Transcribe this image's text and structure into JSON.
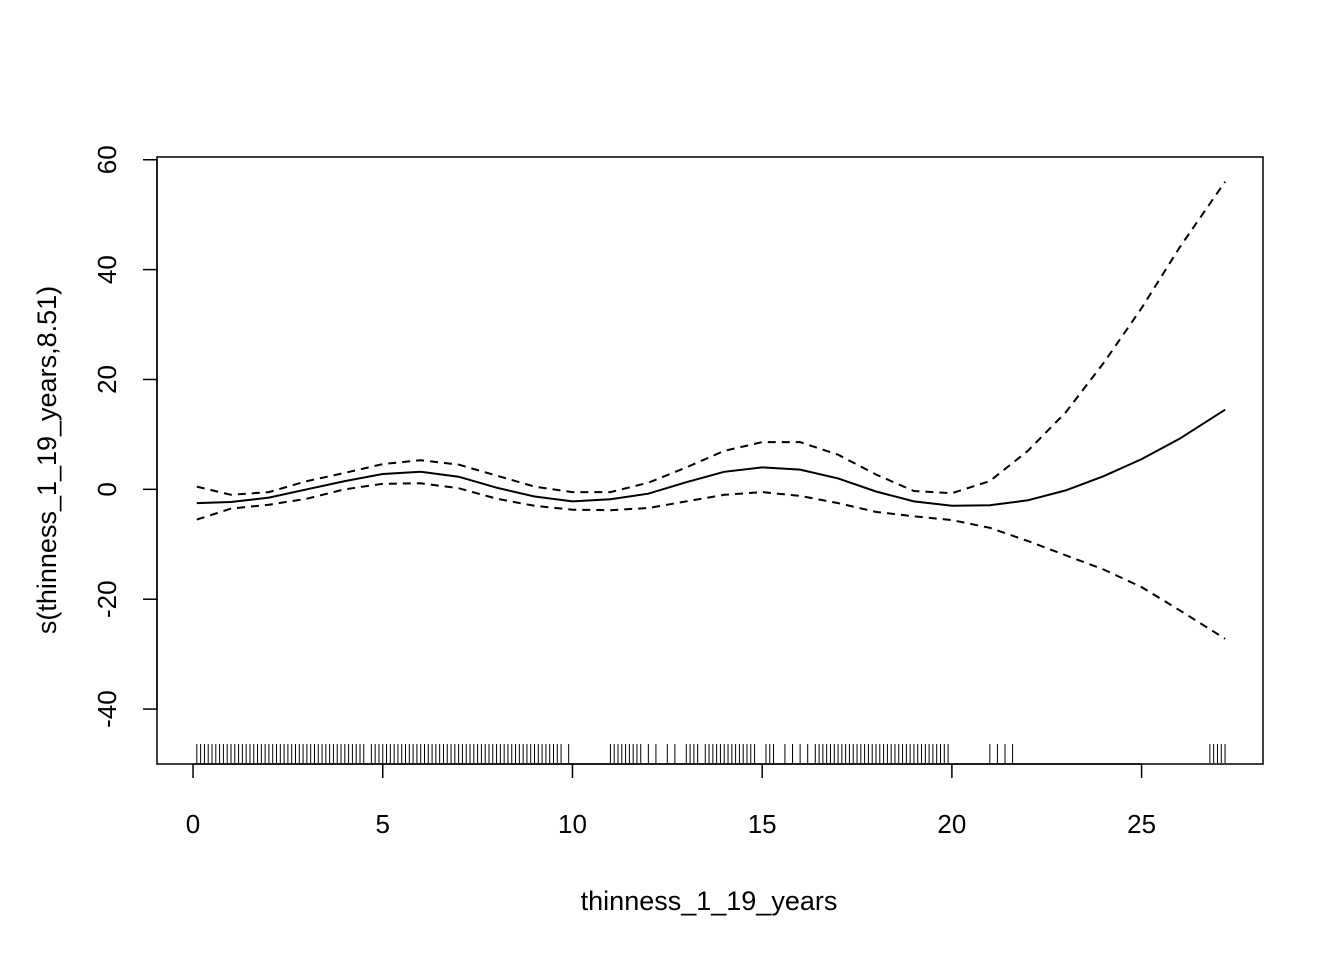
{
  "chart_data": {
    "type": "line",
    "title": "",
    "xlabel": "thinness_1_19_years",
    "ylabel": "s(thinness_1_19_years,8.51)",
    "xlim": [
      -0.95,
      28.2
    ],
    "ylim": [
      -50,
      60.5
    ],
    "x_ticks": [
      0,
      5,
      10,
      15,
      20,
      25
    ],
    "y_ticks": [
      -40,
      -20,
      0,
      20,
      40,
      60
    ],
    "x_tick_labels": [
      "0",
      "5",
      "10",
      "15",
      "20",
      "25"
    ],
    "y_tick_labels": [
      "-40",
      "-20",
      "0",
      "20",
      "40",
      "60"
    ],
    "grid": false,
    "legend": "none",
    "series": [
      {
        "style": "solid",
        "x": [
          0.1,
          1,
          2,
          3,
          4,
          5,
          6,
          7,
          8,
          9,
          10,
          11,
          12,
          13,
          14,
          15,
          16,
          17,
          18,
          19,
          20,
          21,
          22,
          23,
          24,
          25,
          26,
          27.2
        ],
        "y": [
          -2.5,
          -2.3,
          -1.5,
          0,
          1.5,
          2.8,
          3.2,
          2.3,
          0.3,
          -1.3,
          -2.2,
          -1.8,
          -0.8,
          1.3,
          3.2,
          4.0,
          3.6,
          2.0,
          -0.4,
          -2.2,
          -3.0,
          -2.9,
          -2.0,
          -0.2,
          2.4,
          5.5,
          9.2,
          14.5
        ]
      },
      {
        "style": "dashed",
        "x": [
          0.1,
          1,
          2,
          3,
          4,
          5,
          6,
          7,
          8,
          9,
          10,
          11,
          12,
          13,
          14,
          15,
          16,
          17,
          18,
          19,
          20,
          21,
          22,
          23,
          24,
          25,
          26,
          27.2
        ],
        "y": [
          0.5,
          -1,
          -0.5,
          1.5,
          3,
          4.6,
          5.3,
          4.5,
          2.5,
          0.5,
          -0.5,
          -0.5,
          1.2,
          4,
          7,
          8.6,
          8.6,
          6.3,
          2.7,
          -0.3,
          -0.7,
          1.5,
          7,
          14,
          23,
          33,
          44,
          56
        ]
      },
      {
        "style": "dashed",
        "x": [
          0.1,
          1,
          2,
          3,
          4,
          5,
          6,
          7,
          8,
          9,
          10,
          11,
          12,
          13,
          14,
          15,
          16,
          17,
          18,
          19,
          20,
          21,
          22,
          23,
          24,
          25,
          26,
          27.2
        ],
        "y": [
          -5.5,
          -3.5,
          -2.8,
          -1.7,
          0,
          1,
          1.1,
          0.2,
          -1.7,
          -3,
          -3.7,
          -3.8,
          -3.4,
          -2.2,
          -1,
          -0.5,
          -1.2,
          -2.5,
          -4.1,
          -4.9,
          -5.6,
          -7,
          -9.4,
          -12,
          -14.6,
          -17.8,
          -22,
          -27.2
        ]
      }
    ],
    "rug": [
      0.1,
      0.2,
      0.3,
      0.4,
      0.5,
      0.6,
      0.7,
      0.8,
      0.9,
      1.0,
      1.1,
      1.2,
      1.3,
      1.4,
      1.5,
      1.6,
      1.7,
      1.8,
      1.9,
      2.0,
      2.1,
      2.2,
      2.3,
      2.4,
      2.5,
      2.6,
      2.7,
      2.8,
      2.9,
      3.0,
      3.1,
      3.2,
      3.3,
      3.4,
      3.5,
      3.6,
      3.7,
      3.8,
      3.9,
      4.0,
      4.1,
      4.2,
      4.3,
      4.4,
      4.5,
      4.7,
      4.8,
      4.9,
      5.0,
      5.1,
      5.2,
      5.3,
      5.4,
      5.5,
      5.6,
      5.7,
      5.8,
      5.9,
      6.0,
      6.1,
      6.2,
      6.3,
      6.4,
      6.5,
      6.6,
      6.7,
      6.8,
      6.9,
      7.0,
      7.1,
      7.2,
      7.3,
      7.4,
      7.5,
      7.6,
      7.7,
      7.8,
      7.9,
      8.0,
      8.1,
      8.2,
      8.3,
      8.4,
      8.5,
      8.6,
      8.7,
      8.8,
      8.9,
      9.0,
      9.1,
      9.2,
      9.3,
      9.4,
      9.5,
      9.6,
      9.7,
      9.9,
      11.0,
      11.1,
      11.2,
      11.3,
      11.4,
      11.5,
      11.6,
      11.7,
      11.8,
      12.0,
      12.2,
      12.5,
      12.7,
      13.0,
      13.1,
      13.2,
      13.3,
      13.5,
      13.6,
      13.7,
      13.8,
      13.9,
      14.0,
      14.1,
      14.2,
      14.3,
      14.4,
      14.5,
      14.6,
      14.7,
      14.8,
      15.1,
      15.2,
      15.3,
      15.6,
      15.8,
      16.0,
      16.2,
      16.4,
      16.5,
      16.6,
      16.7,
      16.8,
      16.9,
      17.0,
      17.1,
      17.2,
      17.3,
      17.4,
      17.5,
      17.6,
      17.7,
      17.8,
      17.9,
      18.0,
      18.1,
      18.2,
      18.3,
      18.4,
      18.5,
      18.6,
      18.7,
      18.8,
      18.9,
      19.0,
      19.1,
      19.2,
      19.3,
      19.4,
      19.5,
      19.6,
      19.7,
      19.8,
      19.9,
      21.0,
      21.2,
      21.4,
      21.6,
      26.8,
      26.9,
      27.0,
      27.1,
      27.2
    ]
  }
}
